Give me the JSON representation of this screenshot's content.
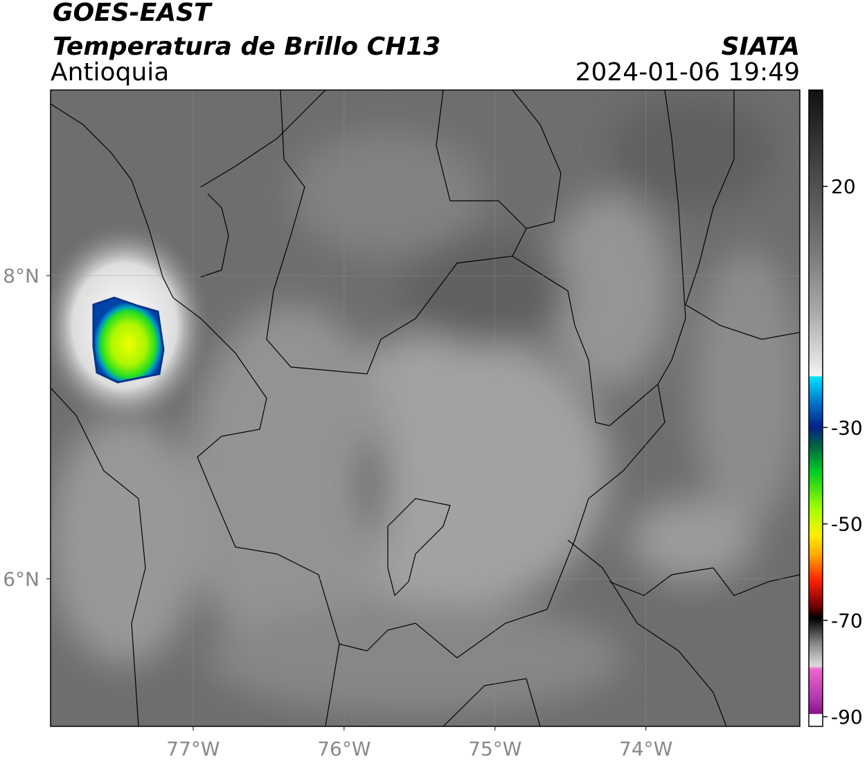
{
  "map": {
    "title": "GOES-EAST",
    "subtitle": "Temperatura de Brillo CH13",
    "region": "Antioquia",
    "source": "SIATA",
    "datetime": "2024-01-06 19:49",
    "xlim": [
      -77.945,
      -72.98
    ],
    "ylim": [
      5.027,
      9.224
    ],
    "xticks": [
      {
        "value": -77,
        "label": "77°W"
      },
      {
        "value": -76,
        "label": "76°W"
      },
      {
        "value": -75,
        "label": "75°W"
      },
      {
        "value": -74,
        "label": "74°W"
      }
    ],
    "yticks": [
      {
        "value": 8,
        "label": "8°N"
      },
      {
        "value": 6,
        "label": "6°N"
      }
    ],
    "grid": true,
    "colorbar": {
      "lim": [
        -92,
        40
      ],
      "ticks": [
        20,
        -30,
        -50,
        -70,
        -90
      ]
    }
  }
}
